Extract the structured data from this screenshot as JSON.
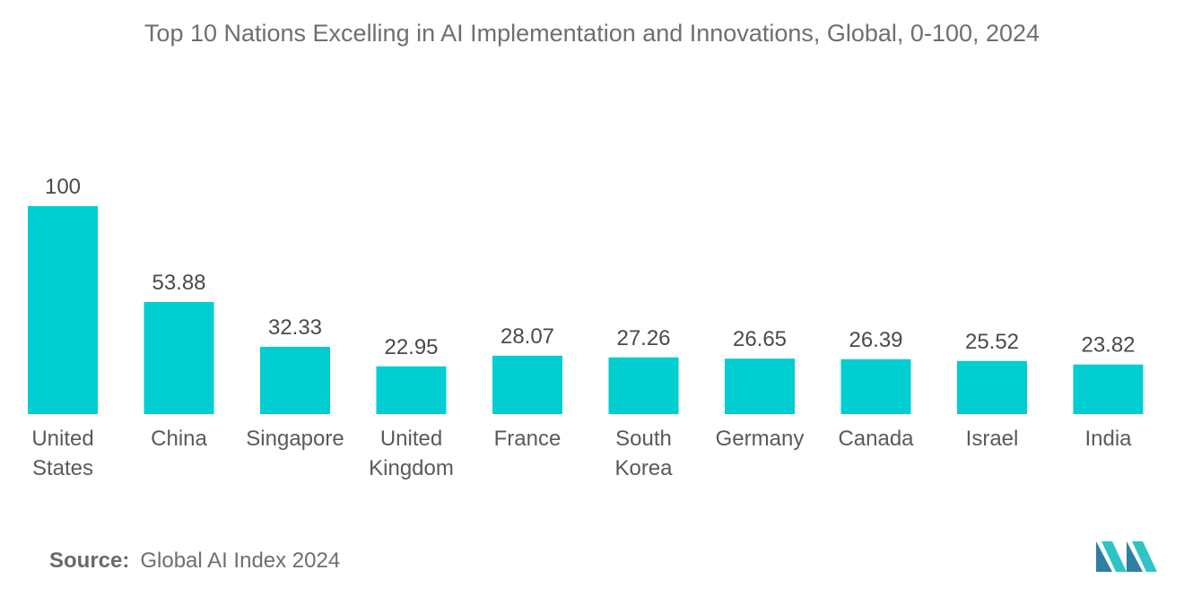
{
  "title": "Top 10 Nations Excelling in AI Implementation and Innovations, Global, 0-100, 2024",
  "source": {
    "label": "Source:",
    "text": "Global AI Index 2024"
  },
  "colors": {
    "bar": "#00CED1",
    "logo_dark": "#2E7FA3",
    "logo_light": "#2EC4C4"
  },
  "chart_data": {
    "type": "bar",
    "title": "Top 10 Nations Excelling in AI Implementation and Innovations, Global, 0-100, 2024",
    "xlabel": "",
    "ylabel": "",
    "ylim": [
      0,
      100
    ],
    "grid": false,
    "categories": [
      [
        "United",
        "States"
      ],
      [
        "China"
      ],
      [
        "Singapore"
      ],
      [
        "United",
        "Kingdom"
      ],
      [
        "France"
      ],
      [
        "South",
        "Korea"
      ],
      [
        "Germany"
      ],
      [
        "Canada"
      ],
      [
        "Israel"
      ],
      [
        "India"
      ]
    ],
    "values": [
      100,
      53.88,
      32.33,
      22.95,
      28.07,
      27.26,
      26.65,
      26.39,
      25.52,
      23.82
    ],
    "value_labels": [
      "100",
      "53.88",
      "32.33",
      "22.95",
      "28.07",
      "27.26",
      "26.65",
      "26.39",
      "25.52",
      "23.82"
    ]
  }
}
